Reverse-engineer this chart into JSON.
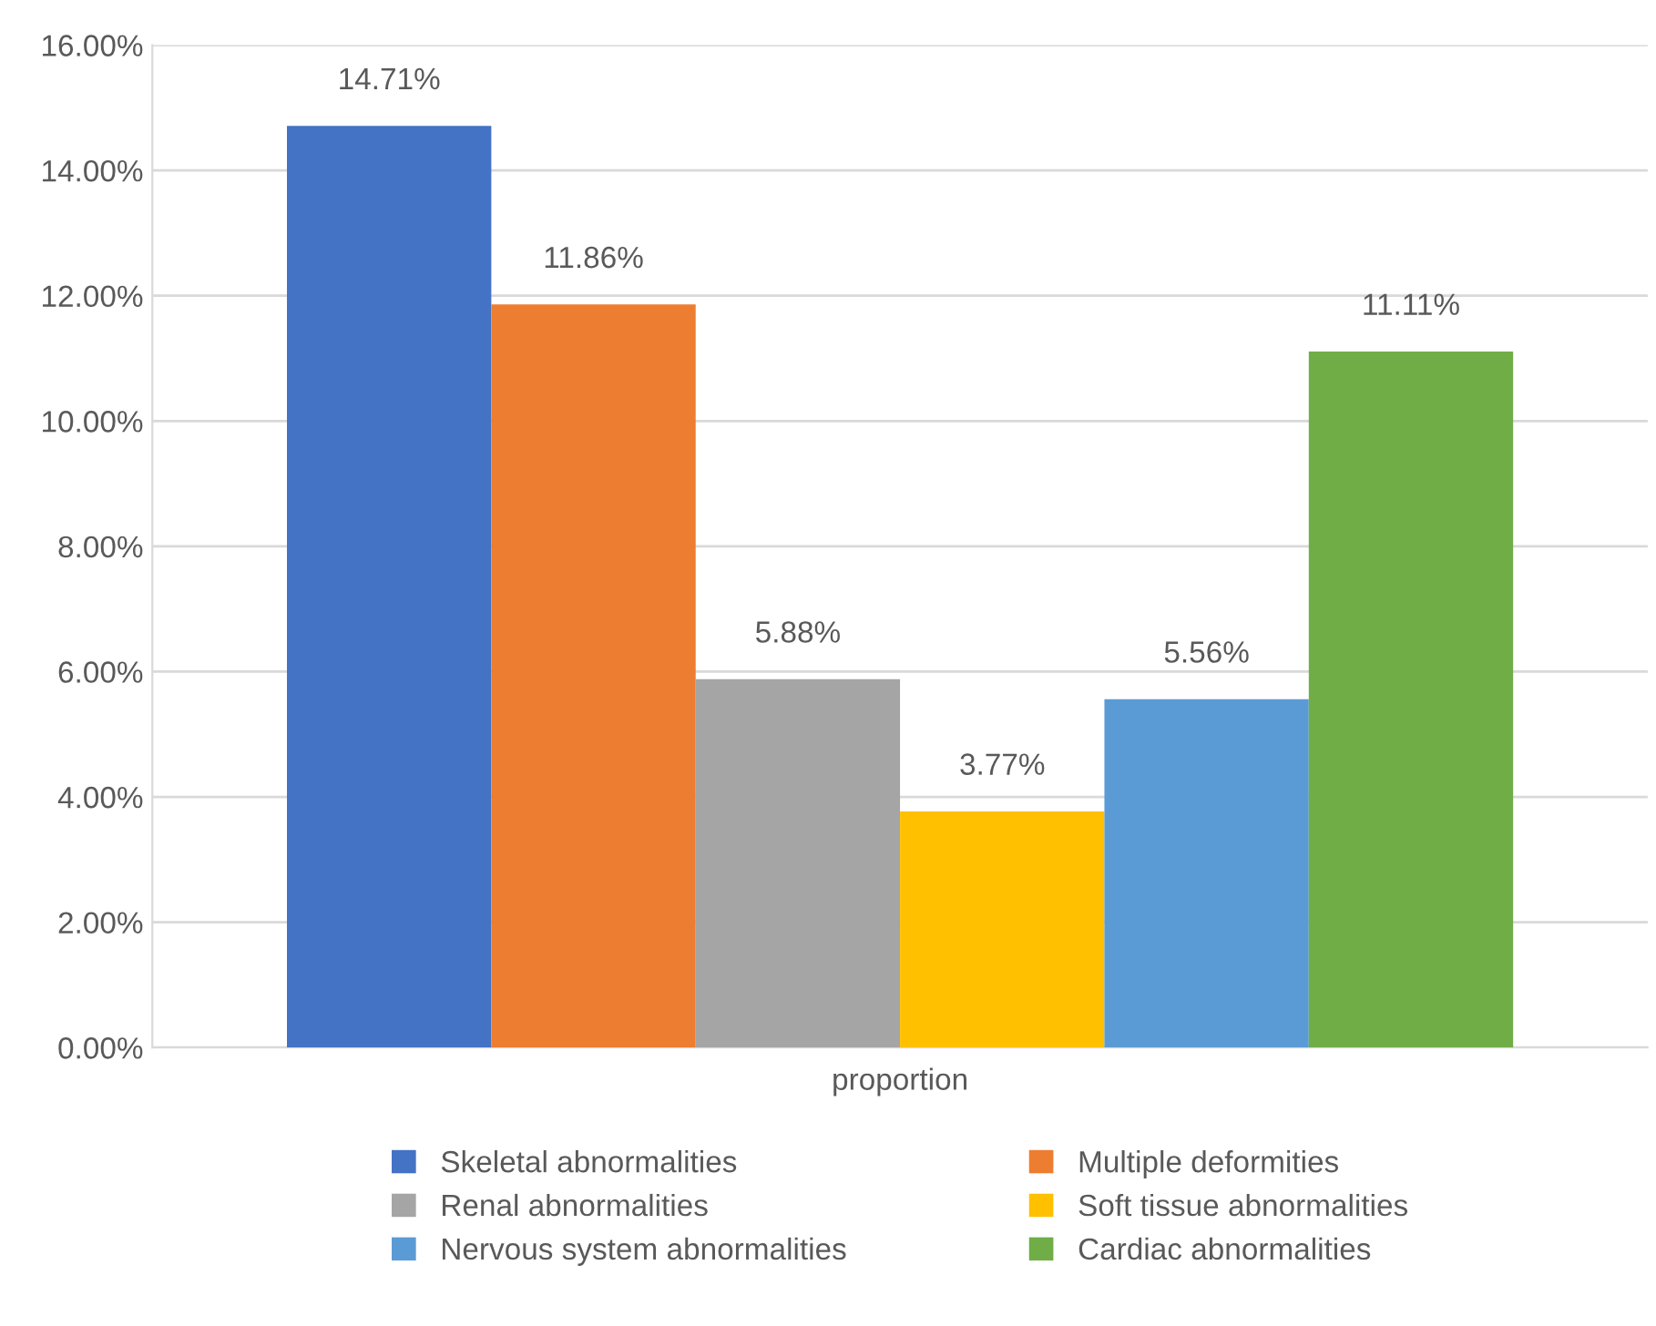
{
  "chart_data": {
    "type": "bar",
    "categories": [
      "proportion"
    ],
    "series": [
      {
        "name": "Skeletal abnormalities",
        "color": "#4472c4",
        "values": [
          14.71
        ],
        "value_labels": [
          "14.71%"
        ]
      },
      {
        "name": "Multiple deformities",
        "color": "#ed7d31",
        "values": [
          11.86
        ],
        "value_labels": [
          "11.86%"
        ]
      },
      {
        "name": "Renal abnormalities",
        "color": "#a5a5a5",
        "values": [
          5.88
        ],
        "value_labels": [
          "5.88%"
        ]
      },
      {
        "name": "Soft tissue abnormalities",
        "color": "#ffc000",
        "values": [
          3.77
        ],
        "value_labels": [
          "3.77%"
        ]
      },
      {
        "name": "Nervous system abnormalities",
        "color": "#5b9bd5",
        "values": [
          5.56
        ],
        "value_labels": [
          "5.56%"
        ]
      },
      {
        "name": "Cardiac abnormalities",
        "color": "#70ad47",
        "values": [
          11.11
        ],
        "value_labels": [
          "11.11%"
        ]
      }
    ],
    "ylim": [
      0,
      16
    ],
    "yticks": [
      {
        "value": 0,
        "label": "0.00%"
      },
      {
        "value": 2,
        "label": "2.00%"
      },
      {
        "value": 4,
        "label": "4.00%"
      },
      {
        "value": 6,
        "label": "6.00%"
      },
      {
        "value": 8,
        "label": "8.00%"
      },
      {
        "value": 10,
        "label": "10.00%"
      },
      {
        "value": 12,
        "label": "12.00%"
      },
      {
        "value": 14,
        "label": "14.00%"
      },
      {
        "value": 16,
        "label": "16.00%"
      }
    ],
    "grid": "y",
    "legend": "bottom"
  }
}
